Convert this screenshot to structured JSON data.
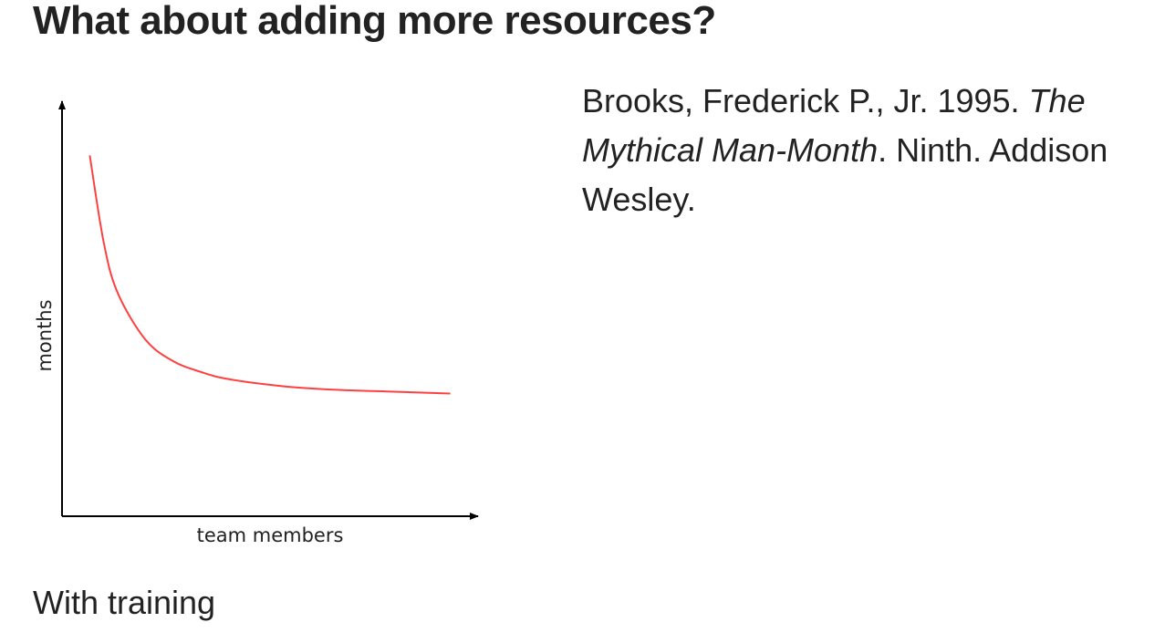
{
  "slide": {
    "title": "What about adding more resources?",
    "caption": "With training"
  },
  "citation": {
    "authors": "Brooks, Frederick P., Jr. 1995. ",
    "book_title": "The Mythical Man-Month",
    "details": ". Ninth. Addison Wesley."
  },
  "chart_data": {
    "type": "line",
    "xlabel": "team members",
    "ylabel": "months",
    "x_ticks": [],
    "y_ticks": [],
    "grid": false,
    "legend": "none",
    "series": [
      {
        "x": [
          1,
          1.5,
          2,
          3,
          4,
          5,
          6,
          8,
          10,
          12,
          14
        ],
        "y": [
          10.0,
          7.6,
          6.2,
          4.9,
          4.3,
          4.0,
          3.8,
          3.6,
          3.5,
          3.45,
          3.4
        ],
        "color": "#ff4040"
      }
    ],
    "xlim": [
      0,
      15
    ],
    "ylim": [
      0,
      11.5
    ]
  }
}
